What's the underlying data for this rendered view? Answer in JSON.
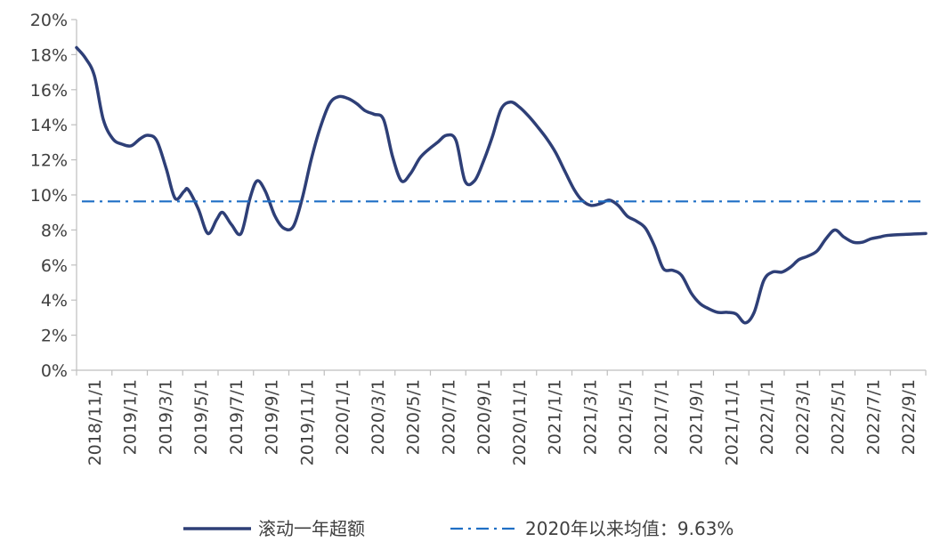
{
  "chart_data": {
    "type": "line",
    "title": "",
    "xlabel": "",
    "ylabel": "",
    "ylim": [
      0,
      20
    ],
    "y_ticks": [
      "0%",
      "2%",
      "4%",
      "6%",
      "8%",
      "10%",
      "12%",
      "14%",
      "16%",
      "18%",
      "20%"
    ],
    "x_tick_labels": [
      "2018/11/1",
      "2019/1/1",
      "2019/3/1",
      "2019/5/1",
      "2019/7/1",
      "2019/9/1",
      "2019/11/1",
      "2020/1/1",
      "2020/3/1",
      "2020/5/1",
      "2020/7/1",
      "2020/9/1",
      "2020/11/1",
      "2021/1/1",
      "2021/3/1",
      "2021/5/1",
      "2021/7/1",
      "2021/9/1",
      "2021/11/1",
      "2022/1/1",
      "2022/3/1",
      "2022/5/1",
      "2022/7/1",
      "2022/9/1"
    ],
    "x_range": [
      "2018-11-01",
      "2022-10-01"
    ],
    "grid": false,
    "legend_position": "bottom",
    "series": [
      {
        "name": "滚动一年超额",
        "color": "#2E3F77",
        "style": "solid",
        "points": [
          [
            "2018-11-01",
            18.4
          ],
          [
            "2018-11-16",
            17.8
          ],
          [
            "2018-12-01",
            16.8
          ],
          [
            "2018-12-16",
            14.3
          ],
          [
            "2019-01-01",
            13.2
          ],
          [
            "2019-01-16",
            12.9
          ],
          [
            "2019-02-01",
            12.8
          ],
          [
            "2019-02-16",
            13.2
          ],
          [
            "2019-03-01",
            13.4
          ],
          [
            "2019-03-16",
            13.1
          ],
          [
            "2019-04-01",
            11.5
          ],
          [
            "2019-04-16",
            9.8
          ],
          [
            "2019-05-01",
            10.2
          ],
          [
            "2019-05-08",
            10.3
          ],
          [
            "2019-05-25",
            9.2
          ],
          [
            "2019-06-10",
            7.8
          ],
          [
            "2019-06-25",
            8.6
          ],
          [
            "2019-07-05",
            9.0
          ],
          [
            "2019-07-20",
            8.3
          ],
          [
            "2019-08-05",
            7.8
          ],
          [
            "2019-08-20",
            9.8
          ],
          [
            "2019-09-01",
            10.8
          ],
          [
            "2019-09-15",
            10.2
          ],
          [
            "2019-10-01",
            8.8
          ],
          [
            "2019-10-16",
            8.1
          ],
          [
            "2019-11-01",
            8.2
          ],
          [
            "2019-11-16",
            9.8
          ],
          [
            "2019-12-01",
            12.0
          ],
          [
            "2019-12-16",
            13.8
          ],
          [
            "2020-01-01",
            15.2
          ],
          [
            "2020-01-16",
            15.6
          ],
          [
            "2020-02-01",
            15.5
          ],
          [
            "2020-02-16",
            15.2
          ],
          [
            "2020-03-01",
            14.8
          ],
          [
            "2020-03-16",
            14.6
          ],
          [
            "2020-04-01",
            14.3
          ],
          [
            "2020-04-16",
            12.2
          ],
          [
            "2020-05-01",
            10.8
          ],
          [
            "2020-05-16",
            11.2
          ],
          [
            "2020-06-01",
            12.1
          ],
          [
            "2020-06-16",
            12.6
          ],
          [
            "2020-07-01",
            13.0
          ],
          [
            "2020-07-16",
            13.4
          ],
          [
            "2020-08-01",
            13.1
          ],
          [
            "2020-08-16",
            10.8
          ],
          [
            "2020-09-01",
            10.8
          ],
          [
            "2020-09-16",
            11.9
          ],
          [
            "2020-10-01",
            13.3
          ],
          [
            "2020-10-16",
            14.9
          ],
          [
            "2020-11-01",
            15.3
          ],
          [
            "2020-11-16",
            15.0
          ],
          [
            "2020-12-01",
            14.5
          ],
          [
            "2020-12-16",
            13.9
          ],
          [
            "2021-01-01",
            13.2
          ],
          [
            "2021-01-16",
            12.4
          ],
          [
            "2021-02-01",
            11.3
          ],
          [
            "2021-02-16",
            10.3
          ],
          [
            "2021-03-01",
            9.7
          ],
          [
            "2021-03-16",
            9.4
          ],
          [
            "2021-04-01",
            9.5
          ],
          [
            "2021-04-16",
            9.7
          ],
          [
            "2021-05-01",
            9.4
          ],
          [
            "2021-05-16",
            8.8
          ],
          [
            "2021-06-01",
            8.5
          ],
          [
            "2021-06-16",
            8.1
          ],
          [
            "2021-07-01",
            7.1
          ],
          [
            "2021-07-16",
            5.8
          ],
          [
            "2021-08-01",
            5.7
          ],
          [
            "2021-08-16",
            5.4
          ],
          [
            "2021-09-01",
            4.4
          ],
          [
            "2021-09-16",
            3.8
          ],
          [
            "2021-10-01",
            3.5
          ],
          [
            "2021-10-16",
            3.3
          ],
          [
            "2021-11-01",
            3.3
          ],
          [
            "2021-11-16",
            3.2
          ],
          [
            "2021-12-01",
            2.7
          ],
          [
            "2021-12-16",
            3.3
          ],
          [
            "2022-01-01",
            5.1
          ],
          [
            "2022-01-16",
            5.6
          ],
          [
            "2022-02-01",
            5.6
          ],
          [
            "2022-02-16",
            5.9
          ],
          [
            "2022-03-01",
            6.3
          ],
          [
            "2022-03-16",
            6.5
          ],
          [
            "2022-04-01",
            6.8
          ],
          [
            "2022-04-16",
            7.5
          ],
          [
            "2022-05-01",
            8.0
          ],
          [
            "2022-05-16",
            7.6
          ],
          [
            "2022-06-01",
            7.3
          ],
          [
            "2022-06-16",
            7.3
          ],
          [
            "2022-07-01",
            7.5
          ],
          [
            "2022-07-16",
            7.6
          ],
          [
            "2022-08-01",
            7.7
          ],
          [
            "2022-10-01",
            7.8
          ]
        ]
      },
      {
        "name": "2020年以来均值：9.63%",
        "color": "#1F6FC5",
        "style": "dash-dot",
        "constant": 9.63,
        "points": [
          [
            "2018-11-01",
            9.63
          ],
          [
            "2022-10-01",
            9.63
          ]
        ]
      }
    ]
  }
}
